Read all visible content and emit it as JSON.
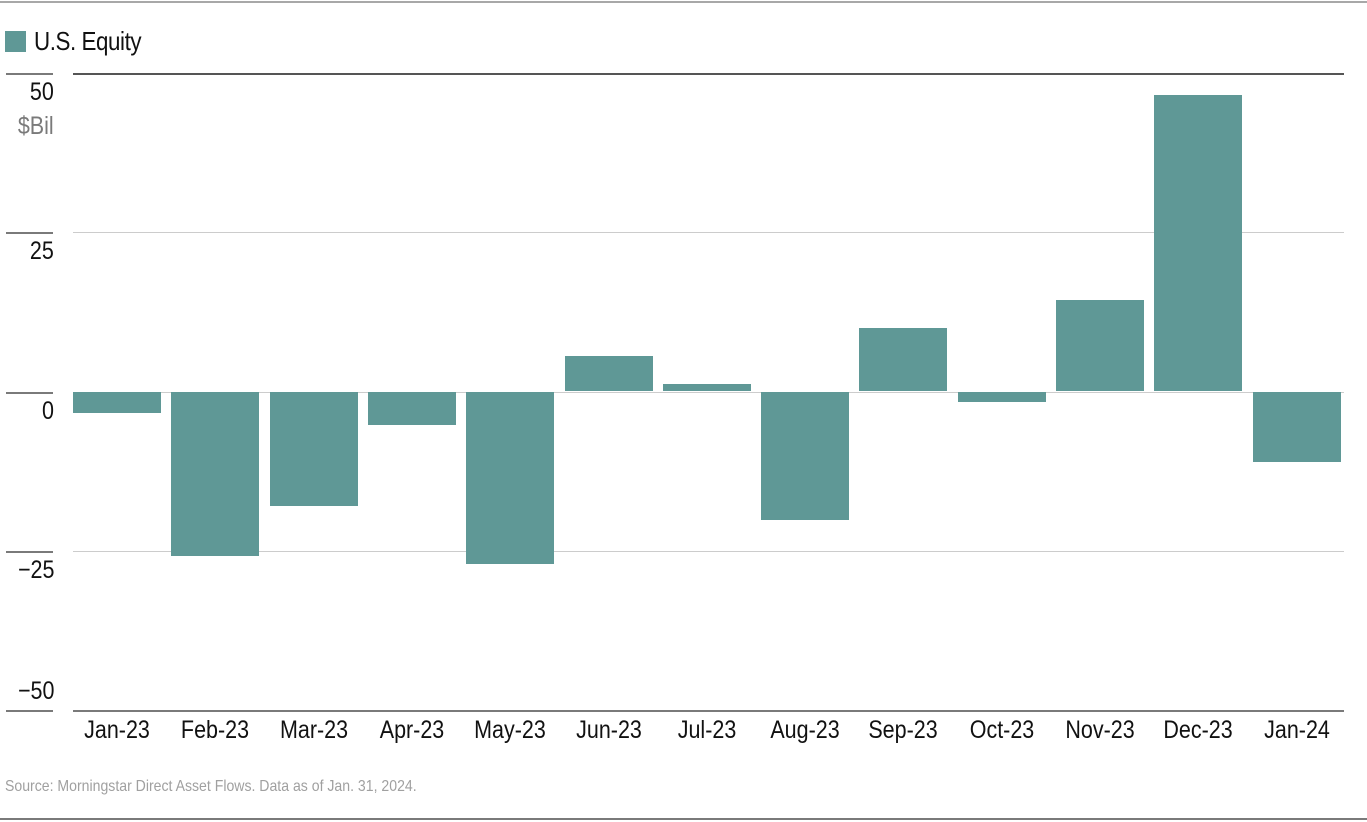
{
  "legend": {
    "label": "U.S. Equity",
    "color": "#5f9896"
  },
  "y_unit": "$Bil",
  "source": "Source: Morningstar Direct Asset Flows. Data as of Jan. 31, 2024.",
  "y_ticks": [
    "50",
    "25",
    "0",
    "−25",
    "−50"
  ],
  "chart_data": {
    "type": "bar",
    "title": "",
    "xlabel": "",
    "ylabel": "$Bil",
    "ylim": [
      -50,
      50
    ],
    "yticks": [
      50,
      25,
      0,
      -25,
      -50
    ],
    "grid": true,
    "legend_position": "top-left",
    "categories": [
      "Jan-23",
      "Feb-23",
      "Mar-23",
      "Apr-23",
      "May-23",
      "Jun-23",
      "Jul-23",
      "Aug-23",
      "Sep-23",
      "Oct-23",
      "Nov-23",
      "Dec-23",
      "Jan-24"
    ],
    "series": [
      {
        "name": "U.S. Equity",
        "color": "#5f9896",
        "values": [
          -3.3,
          -25.9,
          -18.0,
          -5.3,
          -27.1,
          5.5,
          1.1,
          -20.2,
          9.9,
          -1.6,
          14.3,
          46.6,
          -11.0
        ]
      }
    ],
    "source": "Source: Morningstar Direct Asset Flows. Data as of Jan. 31, 2024."
  }
}
